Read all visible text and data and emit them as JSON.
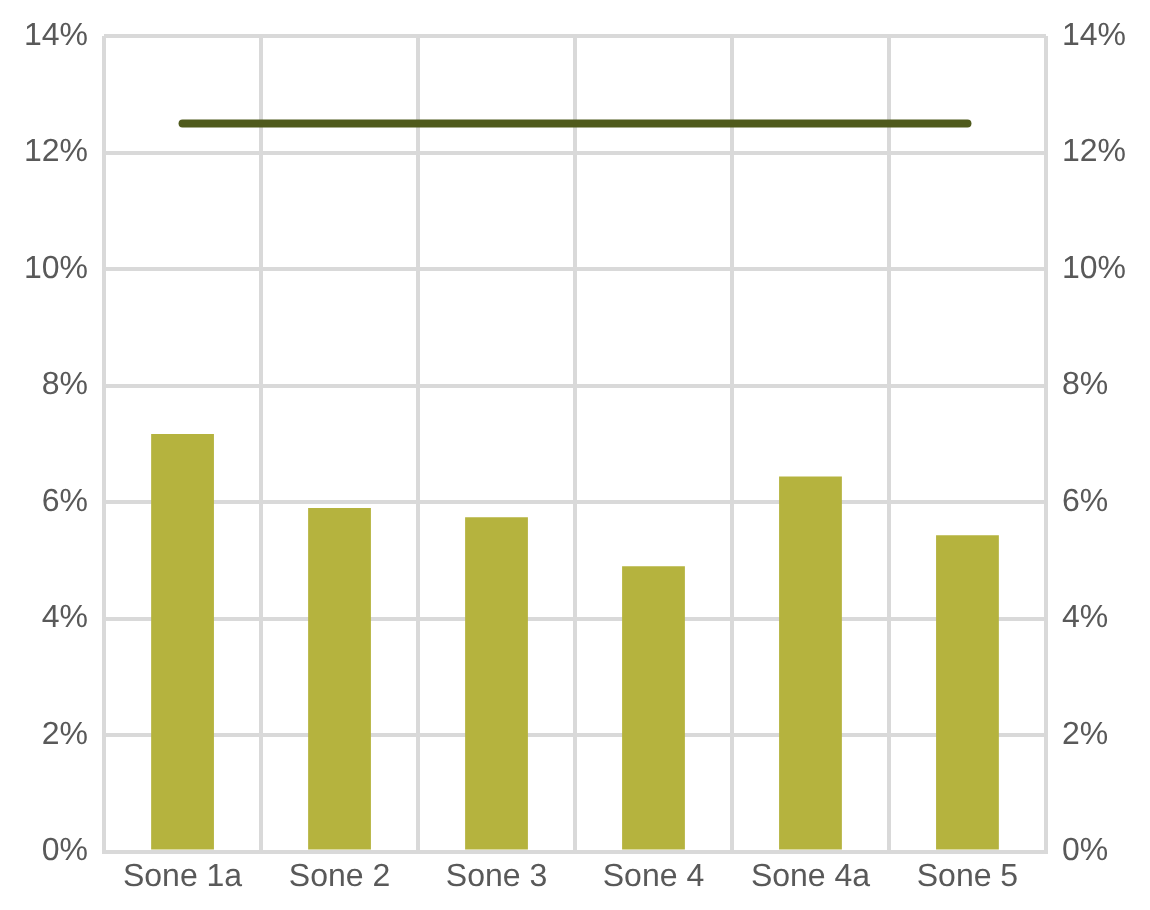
{
  "chart_data": {
    "type": "bar",
    "categories": [
      "Sone 1a",
      "Sone 2",
      "Sone 3",
      "Sone 4",
      "Sone 4a",
      "Sone 5"
    ],
    "series": [
      {
        "color": "#b5b33e",
        "values": [
          7.17,
          5.9,
          5.74,
          4.9,
          6.44,
          5.43
        ]
      },
      {
        "type": "line",
        "color": "#4f5a1c",
        "values": [
          12.5,
          12.5,
          12.5,
          12.5,
          12.5,
          12.5
        ],
        "marker": "none"
      }
    ],
    "ylim": [
      0,
      14
    ],
    "yticks": [
      {
        "value": 0,
        "label": "0%"
      },
      {
        "value": 2,
        "label": "2%"
      },
      {
        "value": 4,
        "label": "4%"
      },
      {
        "value": 6,
        "label": "6%"
      },
      {
        "value": 8,
        "label": "8%"
      },
      {
        "value": 10,
        "label": "10%"
      },
      {
        "value": 12,
        "label": "12%"
      },
      {
        "value": 14,
        "label": "14%"
      }
    ],
    "y2lim": [
      0,
      14
    ],
    "y2ticks": [
      {
        "value": 0,
        "label": "0%"
      },
      {
        "value": 2,
        "label": "2%"
      },
      {
        "value": 4,
        "label": "4%"
      },
      {
        "value": 6,
        "label": "6%"
      },
      {
        "value": 8,
        "label": "8%"
      },
      {
        "value": 10,
        "label": "10%"
      },
      {
        "value": 12,
        "label": "12%"
      },
      {
        "value": 14,
        "label": "14%"
      }
    ],
    "grid": true,
    "legend": false
  }
}
